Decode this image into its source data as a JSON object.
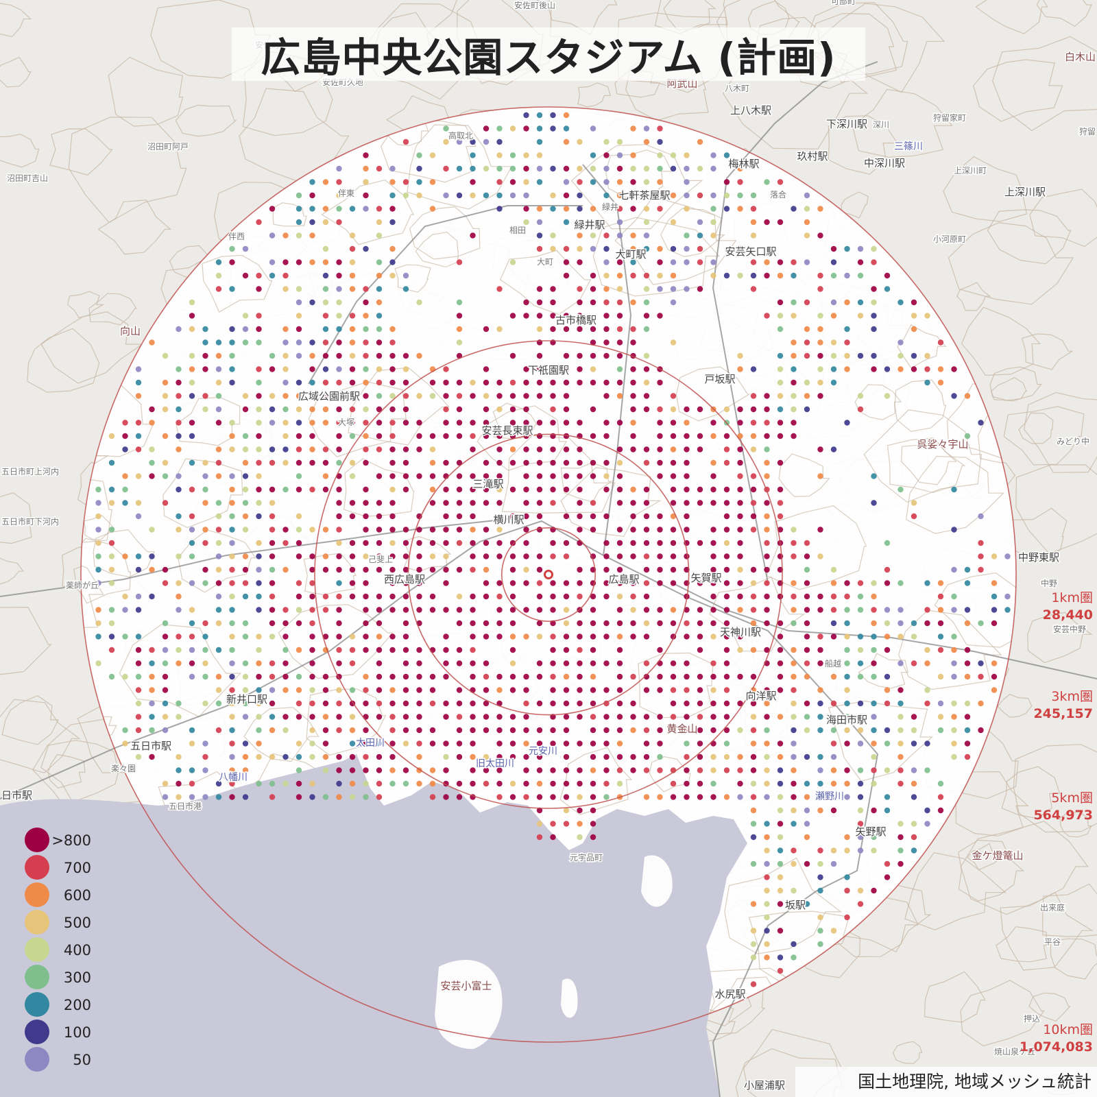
{
  "title": "広島中央公園スタジアム (計画)",
  "attribution": "国土地理院, 地域メッシュ統計",
  "colors": {
    "ring": "#c0504d",
    "ring_label": "#d04040",
    "sea": "#c9c9d9",
    "land": "#ecebe8",
    "urban": "#ffffff",
    "contour": "#c9b9a6"
  },
  "legend": [
    {
      "label": ">800",
      "color": "#9e0142"
    },
    {
      "label": "700",
      "color": "#d53e4f"
    },
    {
      "label": "600",
      "color": "#f08a48"
    },
    {
      "label": "500",
      "color": "#e6c47a"
    },
    {
      "label": "400",
      "color": "#c8d690"
    },
    {
      "label": "300",
      "color": "#7fbf8e"
    },
    {
      "label": "200",
      "color": "#3288a0"
    },
    {
      "label": "100",
      "color": "#3f3a8c"
    },
    {
      "label": "50",
      "color": "#8e88c2"
    }
  ],
  "rings": [
    {
      "name": "1km圏",
      "population": "28,440",
      "radius_km": 1
    },
    {
      "name": "3km圏",
      "population": "245,157",
      "radius_km": 3
    },
    {
      "name": "5km圏",
      "population": "564,973",
      "radius_km": 5
    },
    {
      "name": "10km圏",
      "population": "1,074,083",
      "radius_km": 10
    }
  ],
  "center_marker": "stadium-center",
  "places": [
    {
      "name": "安佐町",
      "cls": "sm"
    },
    {
      "name": "安佐町後山",
      "cls": "sm"
    },
    {
      "name": "可部町",
      "cls": "sm"
    },
    {
      "name": "安佐町久地",
      "cls": "sm"
    },
    {
      "name": "阿武山",
      "cls": "hi"
    },
    {
      "name": "八木町",
      "cls": "sm"
    },
    {
      "name": "上八木駅",
      "cls": "md"
    },
    {
      "name": "下深川駅",
      "cls": "md"
    },
    {
      "name": "深川",
      "cls": "sm"
    },
    {
      "name": "狩留家町",
      "cls": "sm"
    },
    {
      "name": "白木山",
      "cls": "hi"
    },
    {
      "name": "狩留",
      "cls": "sm"
    },
    {
      "name": "高取北",
      "cls": "sm"
    },
    {
      "name": "梅林駅",
      "cls": "md"
    },
    {
      "name": "玖村駅",
      "cls": "md"
    },
    {
      "name": "三篠川",
      "cls": "river"
    },
    {
      "name": "中深川駅",
      "cls": "md"
    },
    {
      "name": "上深川町",
      "cls": "sm"
    },
    {
      "name": "上深川駅",
      "cls": "md"
    },
    {
      "name": "沼田町阿戸",
      "cls": "sm"
    },
    {
      "name": "沼田町吉山",
      "cls": "sm"
    },
    {
      "name": "伴東",
      "cls": "sm"
    },
    {
      "name": "七軒茶屋駅",
      "cls": "md"
    },
    {
      "name": "緑井",
      "cls": "sm"
    },
    {
      "name": "落合",
      "cls": "sm"
    },
    {
      "name": "伴西",
      "cls": "sm"
    },
    {
      "name": "相田",
      "cls": "sm"
    },
    {
      "name": "緑井駅",
      "cls": "md"
    },
    {
      "name": "小河原町",
      "cls": "sm"
    },
    {
      "name": "大町駅",
      "cls": "md"
    },
    {
      "name": "安芸矢口駅",
      "cls": "md"
    },
    {
      "name": "大町",
      "cls": "sm"
    },
    {
      "name": "向山",
      "cls": "hi"
    },
    {
      "name": "古市橋駅",
      "cls": "md"
    },
    {
      "name": "下祇園駅",
      "cls": "md"
    },
    {
      "name": "戸坂駅",
      "cls": "md"
    },
    {
      "name": "広域公園前駅",
      "cls": "md"
    },
    {
      "name": "大塚",
      "cls": "sm"
    },
    {
      "name": "安芸長束駅",
      "cls": "md"
    },
    {
      "name": "呉娑々宇山",
      "cls": "hi"
    },
    {
      "name": "みどり中",
      "cls": "sm"
    },
    {
      "name": "五日市町上河内",
      "cls": "sm"
    },
    {
      "name": "三滝駅",
      "cls": "md"
    },
    {
      "name": "五日市町下河内",
      "cls": "sm"
    },
    {
      "name": "横川駅",
      "cls": "md"
    },
    {
      "name": "己斐上",
      "cls": "sm"
    },
    {
      "name": "中野東駅",
      "cls": "md"
    },
    {
      "name": "西広島駅",
      "cls": "md"
    },
    {
      "name": "広島駅",
      "cls": "md"
    },
    {
      "name": "矢賀駅",
      "cls": "md"
    },
    {
      "name": "中野",
      "cls": "sm"
    },
    {
      "name": "薬師が丘",
      "cls": "sm"
    },
    {
      "name": "天神川駅",
      "cls": "md"
    },
    {
      "name": "安芸中野",
      "cls": "sm"
    },
    {
      "name": "船越",
      "cls": "sm"
    },
    {
      "name": "新井口駅",
      "cls": "md"
    },
    {
      "name": "向洋駅",
      "cls": "md"
    },
    {
      "name": "黄金山",
      "cls": "hi"
    },
    {
      "name": "海田市駅",
      "cls": "md"
    },
    {
      "name": "五日市駅",
      "cls": "md"
    },
    {
      "name": "太田川",
      "cls": "river"
    },
    {
      "name": "元安川",
      "cls": "river"
    },
    {
      "name": "楽々園",
      "cls": "sm"
    },
    {
      "name": "八幡川",
      "cls": "river"
    },
    {
      "name": "旧太田川",
      "cls": "river"
    },
    {
      "name": "瀬野川",
      "cls": "river"
    },
    {
      "name": "日市駅",
      "cls": "md"
    },
    {
      "name": "五日市港",
      "cls": "sm"
    },
    {
      "name": "矢野駅",
      "cls": "md"
    },
    {
      "name": "元宇品町",
      "cls": "sm"
    },
    {
      "name": "金ケ燈篭山",
      "cls": "hi"
    },
    {
      "name": "坂駅",
      "cls": "md"
    },
    {
      "name": "出来庭",
      "cls": "sm"
    },
    {
      "name": "安芸小富士",
      "cls": "hi"
    },
    {
      "name": "平谷",
      "cls": "sm"
    },
    {
      "name": "水尻駅",
      "cls": "md"
    },
    {
      "name": "押込",
      "cls": "sm"
    },
    {
      "name": "焼山泉ケ丘",
      "cls": "sm"
    },
    {
      "name": "小屋浦駅",
      "cls": "md"
    }
  ]
}
